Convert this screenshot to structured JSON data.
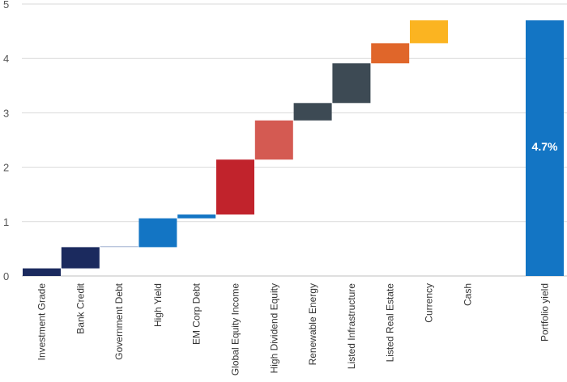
{
  "chart_data": {
    "type": "bar",
    "subtype": "waterfall",
    "title": "",
    "xlabel": "",
    "ylabel": "",
    "ylim": [
      0,
      5
    ],
    "yticks": [
      0,
      1,
      2,
      3,
      4,
      5
    ],
    "grid": true,
    "categories": [
      "Investment Grade",
      "Bank Credit",
      "Government Debt",
      "High Yield",
      "EM Corp Debt",
      "Global Equity Income",
      "High Dividend Equity",
      "Renewable Energy",
      "Listed Infrastructure",
      "Listed Real Estate",
      "Currency",
      "Cash",
      "Portfolio yield"
    ],
    "segments": [
      {
        "category": "Investment Grade",
        "start": 0.0,
        "end": 0.14,
        "color": "#1b2a5e"
      },
      {
        "category": "Bank Credit",
        "start": 0.14,
        "end": 0.53,
        "color": "#1b2a5e"
      },
      {
        "category": "Government Debt",
        "start": 0.53,
        "end": 0.55,
        "color": "#b8c4dc"
      },
      {
        "category": "High Yield",
        "start": 0.53,
        "end": 1.06,
        "color": "#1375c4"
      },
      {
        "category": "EM Corp Debt",
        "start": 1.06,
        "end": 1.13,
        "color": "#1375c4"
      },
      {
        "category": "Global Equity Income",
        "start": 1.13,
        "end": 2.14,
        "color": "#c1232c"
      },
      {
        "category": "High Dividend Equity",
        "start": 2.14,
        "end": 2.86,
        "color": "#d45a52"
      },
      {
        "category": "Renewable Energy",
        "start": 2.86,
        "end": 3.18,
        "color": "#3d4a54"
      },
      {
        "category": "Listed Infrastructure",
        "start": 3.18,
        "end": 3.91,
        "color": "#3d4a54"
      },
      {
        "category": "Listed Real Estate",
        "start": 3.91,
        "end": 4.28,
        "color": "#e0662a"
      },
      {
        "category": "Currency",
        "start": 4.28,
        "end": 4.7,
        "color": "#fbb421"
      },
      {
        "category": "Cash",
        "start": 4.7,
        "end": 4.7,
        "color": "#cccccc"
      },
      {
        "category": "Portfolio yield",
        "start": 0.0,
        "end": 4.7,
        "color": "#1375c4"
      }
    ],
    "total": {
      "category": "Portfolio yield",
      "value": 4.7,
      "label": "4.7%"
    }
  }
}
